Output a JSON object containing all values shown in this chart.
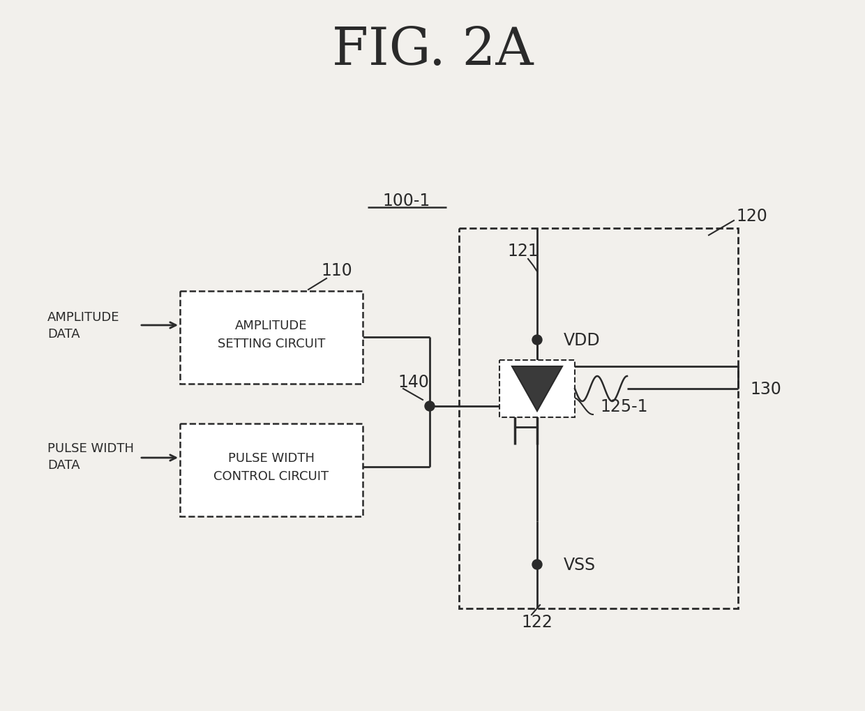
{
  "title": "FIG. 2A",
  "bg_color": "#f2f0ec",
  "line_color": "#2a2a2a",
  "label_100_1": "100-1",
  "label_110": "110",
  "label_120": "120",
  "label_121": "121",
  "label_122": "122",
  "label_125_1": "125-1",
  "label_130": "130",
  "label_140": "140",
  "label_vdd": "VDD",
  "label_vss": "VSS",
  "label_amp_data_line1": "AMPLITUDE",
  "label_amp_data_line2": "DATA",
  "label_amp_circuit_line1": "AMPLITUDE",
  "label_amp_circuit_line2": "SETTING CIRCUIT",
  "label_pw_data_line1": "PULSE WIDTH",
  "label_pw_data_line2": "DATA",
  "label_pw_circuit_line1": "PULSE WIDTH",
  "label_pw_circuit_line2": "CONTROL CIRCUIT"
}
